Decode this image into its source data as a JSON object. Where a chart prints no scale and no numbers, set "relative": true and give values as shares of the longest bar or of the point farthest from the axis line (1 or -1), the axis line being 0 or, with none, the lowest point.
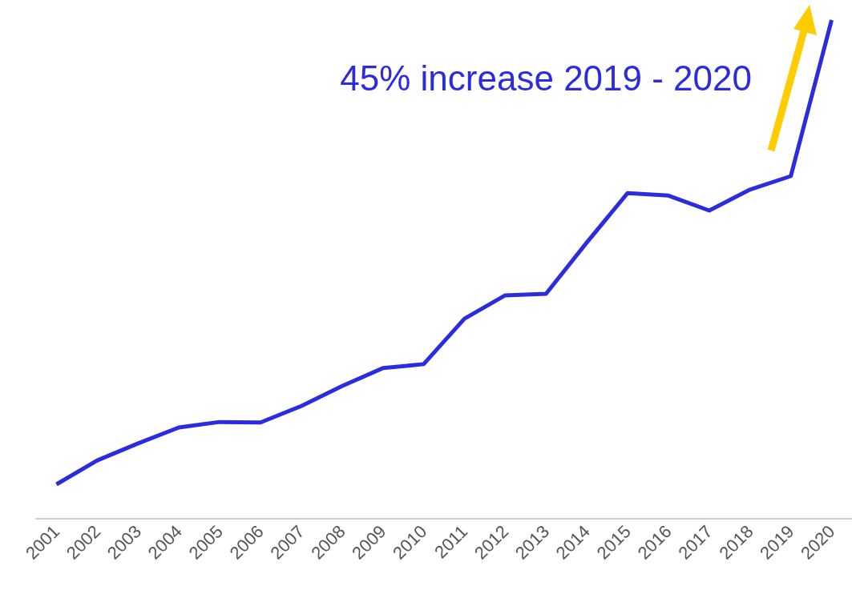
{
  "chart_data": {
    "type": "line",
    "relative": true,
    "categories": [
      "2001",
      "2002",
      "2003",
      "2004",
      "2005",
      "2006",
      "2007",
      "2008",
      "2009",
      "2010",
      "2011",
      "2012",
      "2013",
      "2014",
      "2015",
      "2016",
      "2017",
      "2018",
      "2019",
      "2020"
    ],
    "series": [
      {
        "color": "#2b2be0",
        "values": [
          0.069,
          0.117,
          0.151,
          0.183,
          0.194,
          0.193,
          0.226,
          0.266,
          0.302,
          0.31,
          0.401,
          0.448,
          0.451,
          0.554,
          0.653,
          0.648,
          0.618,
          0.66,
          0.687,
          1.0
        ]
      }
    ],
    "annotations": [
      "45% increase 2019 - 2020"
    ],
    "marker": "none",
    "line_style": "solid",
    "grid": false
  }
}
